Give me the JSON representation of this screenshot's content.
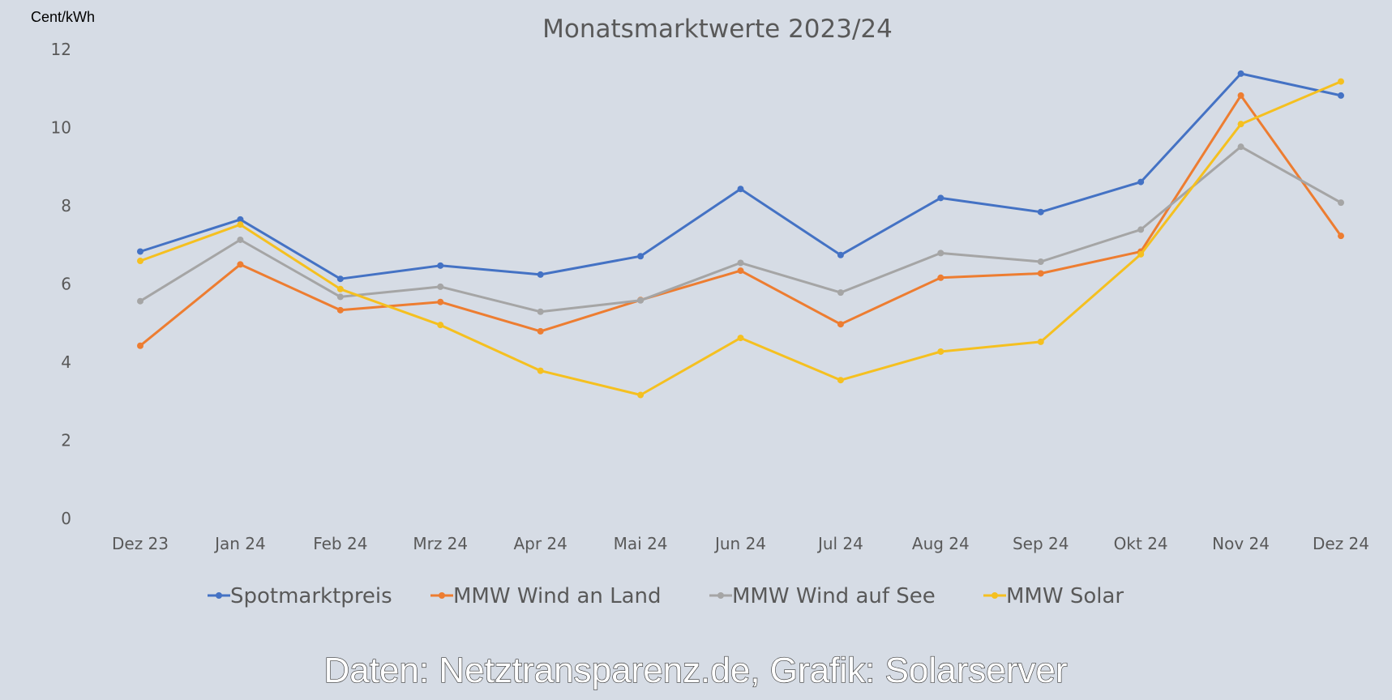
{
  "chart_data": {
    "type": "line",
    "title": "Monatsmarktwerte 2023/24",
    "ylabel": "Cent/kWh",
    "xlabel": "",
    "ylim": [
      0,
      12
    ],
    "yticks": [
      0,
      2,
      4,
      6,
      8,
      10,
      12
    ],
    "grid": false,
    "legend_position": "bottom",
    "categories": [
      "Dez 23",
      "Jan 24",
      "Feb 24",
      "Mrz 24",
      "Apr 24",
      "Mai 24",
      "Jun 24",
      "Jul 24",
      "Aug 24",
      "Sep 24",
      "Okt 24",
      "Nov 24",
      "Dez 24"
    ],
    "series": [
      {
        "name": "Spotmarktpreis",
        "color": "#4472c4",
        "values": [
          6.83,
          7.65,
          6.13,
          6.47,
          6.24,
          6.71,
          8.43,
          6.74,
          8.2,
          7.84,
          8.61,
          11.38,
          10.82
        ]
      },
      {
        "name": "MMW Wind an Land",
        "color": "#ed7d31",
        "values": [
          4.42,
          6.5,
          5.33,
          5.54,
          4.79,
          5.59,
          6.34,
          4.97,
          6.16,
          6.27,
          6.83,
          10.82,
          7.23
        ]
      },
      {
        "name": "MMW Wind auf See",
        "color": "#a5a5a5",
        "values": [
          5.56,
          7.13,
          5.67,
          5.93,
          5.29,
          5.58,
          6.54,
          5.78,
          6.79,
          6.57,
          7.39,
          9.51,
          8.08
        ]
      },
      {
        "name": "MMW Solar",
        "color": "#f5c020",
        "values": [
          6.59,
          7.52,
          5.87,
          4.95,
          3.78,
          3.16,
          4.62,
          3.54,
          4.27,
          4.52,
          6.76,
          10.09,
          11.18
        ]
      }
    ],
    "source_note": "Daten: Netztransparenz.de, Grafik: Solarserver"
  },
  "colors": {
    "background": "#d6dce5",
    "text": "#595959"
  }
}
